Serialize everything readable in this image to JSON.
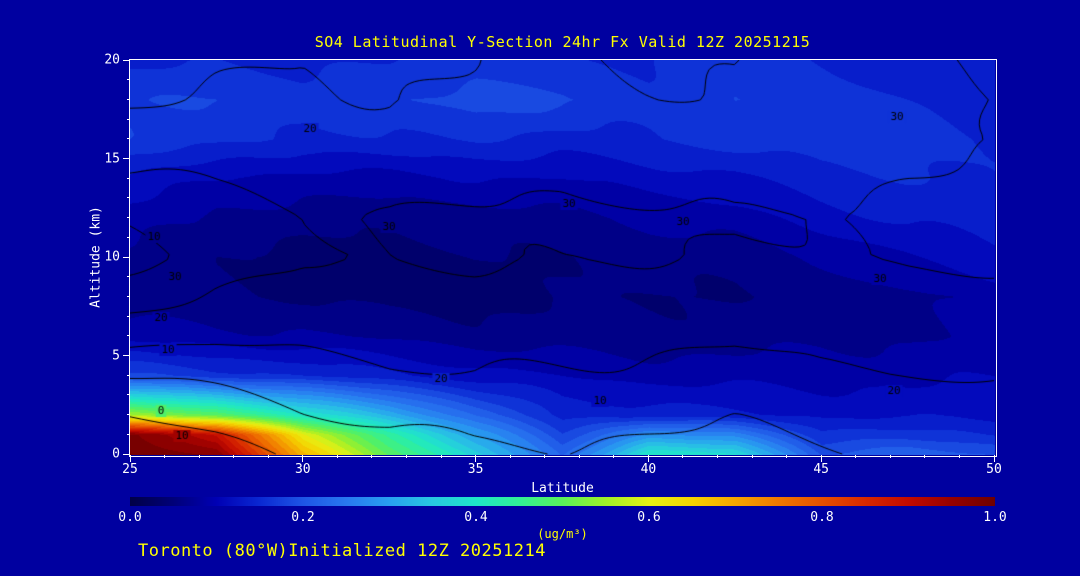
{
  "page": {
    "footer": "Toronto (80°W)Initialized 12Z 20251214",
    "colors": {
      "background": "#0000a0",
      "accent_text": "#ffff00",
      "axis_text": "#ffffff",
      "frame": "#ffffff",
      "contour_line": "#000000"
    }
  },
  "chart_data": {
    "type": "heatmap",
    "title": "SO4 Latitudinal Y-Section 24hr  Fx Valid 12Z 20251215",
    "xlabel": "Latitude",
    "ylabel": "Altitude (km)",
    "x_range": [
      25,
      50
    ],
    "y_range": [
      0,
      20
    ],
    "x_ticks": [
      25,
      30,
      35,
      40,
      45,
      50
    ],
    "y_ticks": [
      0,
      5,
      10,
      15,
      20
    ],
    "x_minor_step": 1,
    "y_minor_step": 1,
    "fill_grid": {
      "x": [
        25,
        27.5,
        30,
        32.5,
        35,
        37.5,
        40,
        42.5,
        45,
        47.5,
        50
      ],
      "y": [
        0,
        1,
        2,
        4,
        6,
        8,
        10,
        12,
        14,
        16,
        18,
        20
      ],
      "values": [
        [
          1.0,
          0.97,
          0.68,
          0.5,
          0.36,
          0.22,
          0.4,
          0.38,
          0.2,
          0.22,
          0.2
        ],
        [
          0.98,
          0.9,
          0.6,
          0.44,
          0.3,
          0.18,
          0.28,
          0.26,
          0.16,
          0.16,
          0.15
        ],
        [
          0.55,
          0.5,
          0.4,
          0.32,
          0.22,
          0.14,
          0.14,
          0.13,
          0.12,
          0.12,
          0.12
        ],
        [
          0.18,
          0.16,
          0.15,
          0.13,
          0.11,
          0.1,
          0.09,
          0.09,
          0.09,
          0.09,
          0.1
        ],
        [
          0.09,
          0.08,
          0.08,
          0.07,
          0.06,
          0.06,
          0.06,
          0.06,
          0.07,
          0.07,
          0.08
        ],
        [
          0.06,
          0.05,
          0.05,
          0.04,
          0.04,
          0.05,
          0.05,
          0.05,
          0.06,
          0.07,
          0.08
        ],
        [
          0.07,
          0.05,
          0.04,
          0.04,
          0.05,
          0.05,
          0.06,
          0.06,
          0.08,
          0.1,
          0.12
        ],
        [
          0.09,
          0.07,
          0.06,
          0.06,
          0.06,
          0.07,
          0.08,
          0.09,
          0.11,
          0.13,
          0.14
        ],
        [
          0.12,
          0.1,
          0.09,
          0.09,
          0.1,
          0.1,
          0.11,
          0.12,
          0.14,
          0.15,
          0.15
        ],
        [
          0.17,
          0.16,
          0.14,
          0.15,
          0.15,
          0.14,
          0.15,
          0.16,
          0.17,
          0.16,
          0.15
        ],
        [
          0.17,
          0.18,
          0.16,
          0.17,
          0.19,
          0.18,
          0.16,
          0.17,
          0.16,
          0.15,
          0.14
        ],
        [
          0.14,
          0.15,
          0.14,
          0.15,
          0.16,
          0.15,
          0.15,
          0.16,
          0.15,
          0.14,
          0.13
        ]
      ]
    },
    "contour_grid": {
      "x": [
        25,
        27.5,
        30,
        32.5,
        35,
        37.5,
        40,
        42.5,
        45,
        47.5,
        50
      ],
      "y": [
        0,
        1,
        2,
        4,
        6,
        8,
        10,
        12,
        14,
        16,
        18,
        20
      ],
      "values": [
        [
          -8,
          -4,
          2,
          6,
          8,
          9,
          8,
          7,
          9,
          11,
          12
        ],
        [
          -4,
          0,
          5,
          9,
          11,
          11,
          10,
          9,
          11,
          13,
          14
        ],
        [
          0,
          4,
          9,
          12,
          13,
          13,
          12,
          11,
          13,
          15,
          16
        ],
        [
          10,
          13,
          16,
          19,
          20,
          19,
          18,
          17,
          19,
          20,
          21
        ],
        [
          24,
          22,
          22,
          23,
          24,
          23,
          22,
          21,
          22,
          23,
          24
        ],
        [
          34,
          29,
          27,
          27,
          28,
          27,
          26,
          25,
          26,
          27,
          28
        ],
        [
          43,
          36,
          31,
          30,
          31,
          31,
          30,
          29,
          30,
          31,
          31
        ],
        [
          39,
          34,
          31,
          30,
          31,
          32,
          31,
          30,
          31,
          32,
          32
        ],
        [
          31,
          29,
          28,
          27,
          28,
          29,
          28,
          27,
          28,
          30,
          31
        ],
        [
          25,
          25,
          24,
          23,
          24,
          25,
          24,
          23,
          25,
          27,
          29
        ],
        [
          19,
          21,
          22,
          20,
          21,
          22,
          21,
          20,
          23,
          26,
          30
        ],
        [
          15,
          18,
          20,
          19,
          20,
          21,
          20,
          19,
          24,
          28,
          33
        ]
      ]
    },
    "contour_levels": [
      0,
      10,
      20,
      30,
      40
    ],
    "contour_labels": [
      {
        "text": "20",
        "lat": 30.2,
        "alt": 16.5
      },
      {
        "text": "30",
        "lat": 47.2,
        "alt": 17.1
      },
      {
        "text": "30",
        "lat": 32.5,
        "alt": 11.5
      },
      {
        "text": "30",
        "lat": 37.7,
        "alt": 12.7
      },
      {
        "text": "30",
        "lat": 41.0,
        "alt": 11.8
      },
      {
        "text": "30",
        "lat": 46.7,
        "alt": 8.9
      },
      {
        "text": "10",
        "lat": 25.7,
        "alt": 11.0
      },
      {
        "text": "30",
        "lat": 26.3,
        "alt": 9.0
      },
      {
        "text": "20",
        "lat": 25.9,
        "alt": 6.9
      },
      {
        "text": "10",
        "lat": 26.1,
        "alt": 5.3
      },
      {
        "text": "0",
        "lat": 25.9,
        "alt": 2.2
      },
      {
        "text": "10",
        "lat": 26.5,
        "alt": 0.9
      },
      {
        "text": "20",
        "lat": 34.0,
        "alt": 3.8
      },
      {
        "text": "10",
        "lat": 38.6,
        "alt": 2.7
      },
      {
        "text": "20",
        "lat": 47.1,
        "alt": 3.2
      }
    ],
    "colormap": [
      [
        0.0,
        "#000046"
      ],
      [
        0.05,
        "#000078"
      ],
      [
        0.1,
        "#0000b4"
      ],
      [
        0.15,
        "#0a28d2"
      ],
      [
        0.2,
        "#1e55e6"
      ],
      [
        0.25,
        "#2878f0"
      ],
      [
        0.3,
        "#28a0f0"
      ],
      [
        0.35,
        "#28c8e1"
      ],
      [
        0.4,
        "#1ee6c8"
      ],
      [
        0.45,
        "#32f096"
      ],
      [
        0.5,
        "#5af05a"
      ],
      [
        0.55,
        "#a0f028"
      ],
      [
        0.6,
        "#e6f014"
      ],
      [
        0.65,
        "#f5d200"
      ],
      [
        0.7,
        "#f5a500"
      ],
      [
        0.75,
        "#f07800"
      ],
      [
        0.8,
        "#e65000"
      ],
      [
        0.85,
        "#d72800"
      ],
      [
        0.9,
        "#c30a00"
      ],
      [
        0.95,
        "#960000"
      ],
      [
        1.0,
        "#6e0000"
      ]
    ],
    "colorbar": {
      "min": 0.0,
      "max": 1.0,
      "ticks": [
        "0.0",
        "0.2",
        "0.4",
        "0.6",
        "0.8",
        "1.0"
      ],
      "label": "(ug/m³)"
    }
  }
}
